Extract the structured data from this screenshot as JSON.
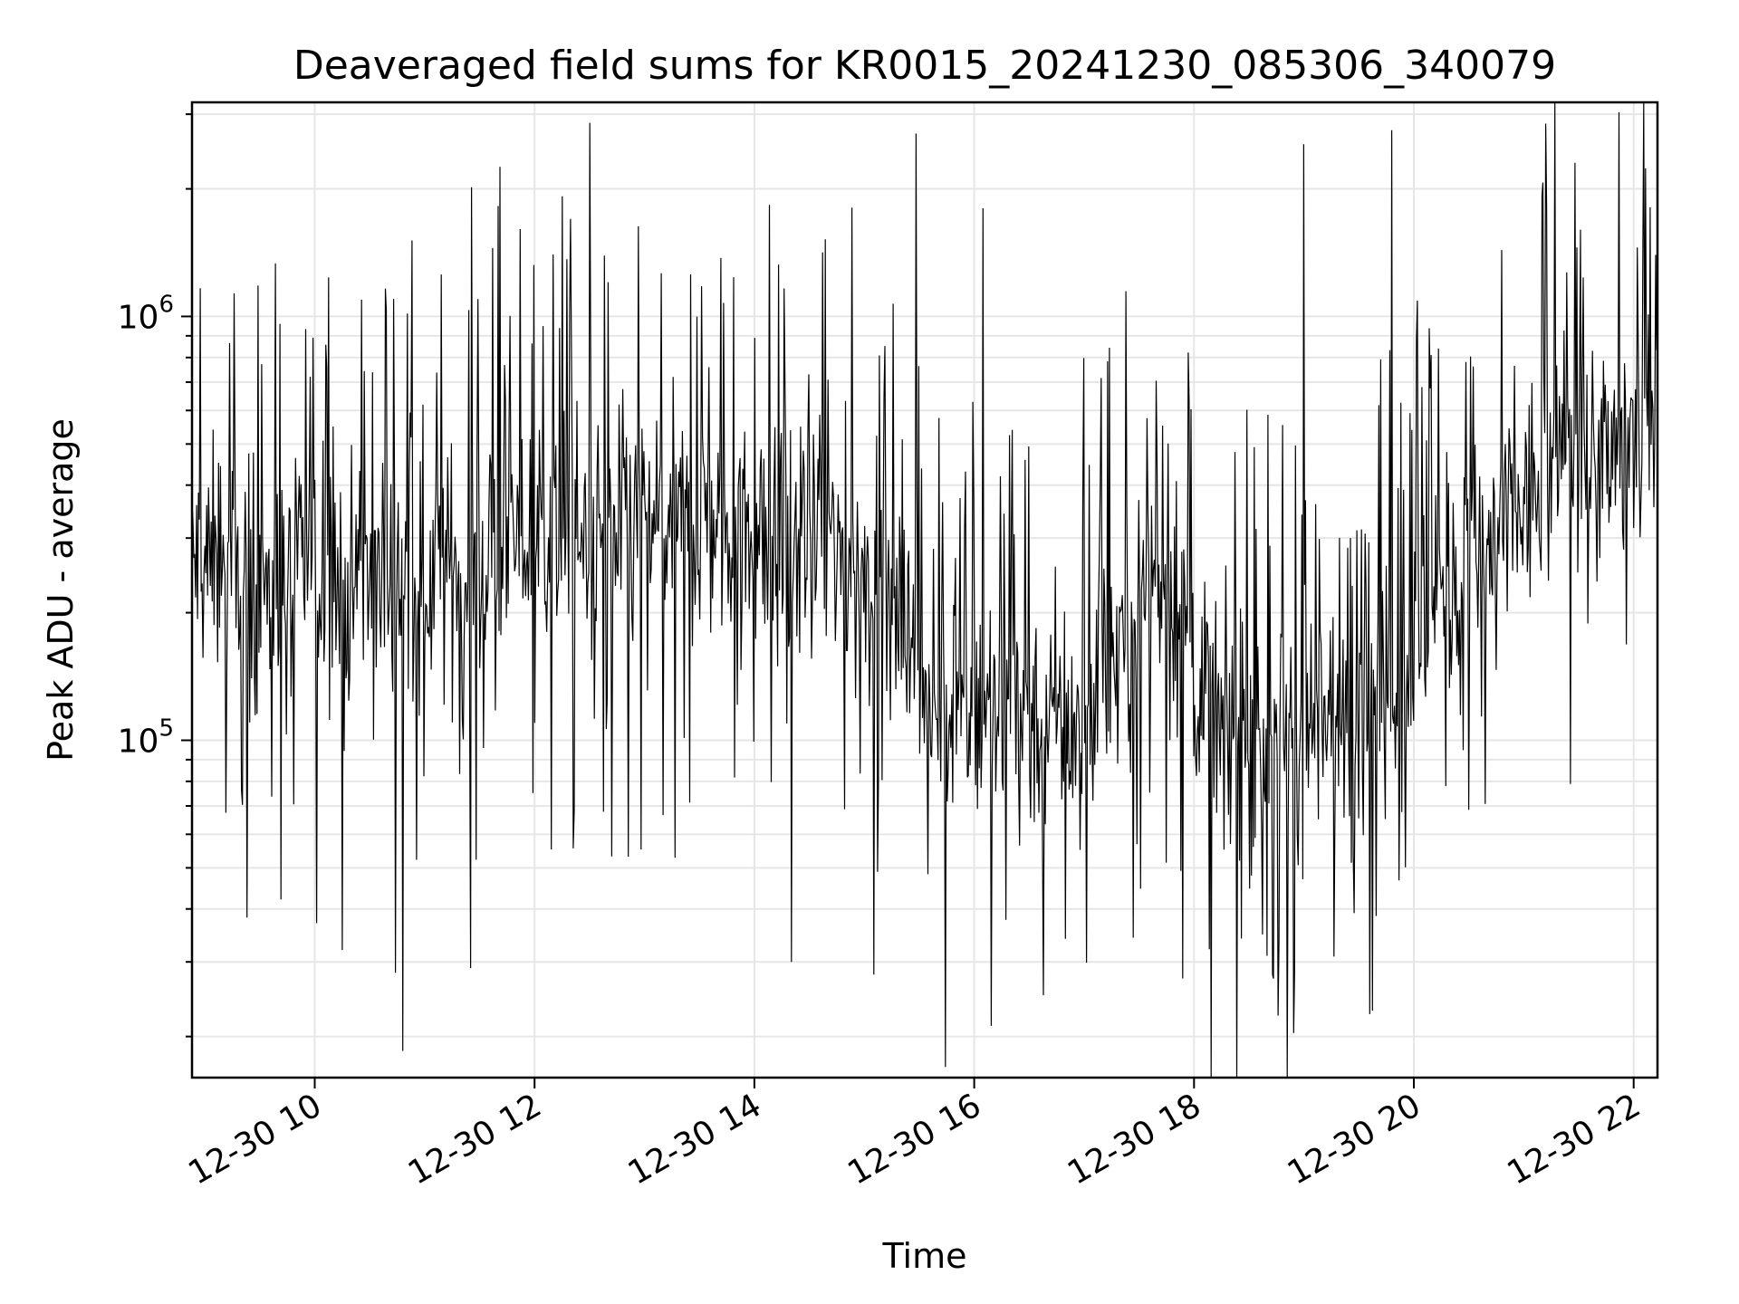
{
  "chart_data": {
    "type": "line",
    "title": "Deaveraged field sums for KR0015_20241230_085306_340079",
    "xlabel": "Time",
    "ylabel": "Peak ADU - average",
    "y_scale": "log",
    "grid": true,
    "grid_minor_y": true,
    "line_color": "#000000",
    "xlim": [
      "2024-12-30 08:53",
      "2024-12-30 22:13"
    ],
    "ylim": [
      16000,
      3200000
    ],
    "x_ticks": [
      {
        "value": "2024-12-30 10:00",
        "label": "12-30 10"
      },
      {
        "value": "2024-12-30 12:00",
        "label": "12-30 12"
      },
      {
        "value": "2024-12-30 14:00",
        "label": "12-30 14"
      },
      {
        "value": "2024-12-30 16:00",
        "label": "12-30 16"
      },
      {
        "value": "2024-12-30 18:00",
        "label": "12-30 18"
      },
      {
        "value": "2024-12-30 20:00",
        "label": "12-30 20"
      },
      {
        "value": "2024-12-30 22:00",
        "label": "12-30 22"
      }
    ],
    "y_ticks": [
      {
        "value": 100000,
        "base": "10",
        "exp": "5"
      },
      {
        "value": 1000000,
        "base": "10",
        "exp": "6"
      }
    ],
    "series_profile": {
      "start": "2024-12-30 08:53",
      "end": "2024-12-30 22:13",
      "samples": 1600,
      "typical_level": [
        {
          "time": "2024-12-30 09:00",
          "value": 260000
        },
        {
          "time": "2024-12-30 10:30",
          "value": 220000
        },
        {
          "time": "2024-12-30 12:00",
          "value": 300000
        },
        {
          "time": "2024-12-30 13:30",
          "value": 330000
        },
        {
          "time": "2024-12-30 15:00",
          "value": 260000
        },
        {
          "time": "2024-12-30 15:45",
          "value": 120000
        },
        {
          "time": "2024-12-30 17:00",
          "value": 110000
        },
        {
          "time": "2024-12-30 17:40",
          "value": 260000
        },
        {
          "time": "2024-12-30 18:15",
          "value": 100000
        },
        {
          "time": "2024-12-30 19:30",
          "value": 110000
        },
        {
          "time": "2024-12-30 20:30",
          "value": 250000
        },
        {
          "time": "2024-12-30 21:30",
          "value": 500000
        },
        {
          "time": "2024-12-30 22:13",
          "value": 500000
        }
      ],
      "peaks": [
        {
          "time": "2024-12-30 15:28",
          "value": 2700000
        },
        {
          "time": "2024-12-30 21:12",
          "value": 2850000
        },
        {
          "time": "2024-12-30 19:48",
          "value": 2750000
        },
        {
          "time": "2024-12-30 19:00",
          "value": 2550000
        },
        {
          "time": "2024-12-30 16:05",
          "value": 1800000
        },
        {
          "time": "2024-12-30 11:37",
          "value": 1450000
        },
        {
          "time": "2024-12-30 12:10",
          "value": 1400000
        }
      ],
      "troughs": [
        {
          "time": "2024-12-30 10:48",
          "value": 18500
        },
        {
          "time": "2024-12-30 11:25",
          "value": 29000
        },
        {
          "time": "2024-12-30 15:05",
          "value": 28000
        },
        {
          "time": "2024-12-30 14:20",
          "value": 30000
        },
        {
          "time": "2024-12-30 10:15",
          "value": 32000
        },
        {
          "time": "2024-12-30 16:50",
          "value": 34000
        }
      ]
    }
  }
}
